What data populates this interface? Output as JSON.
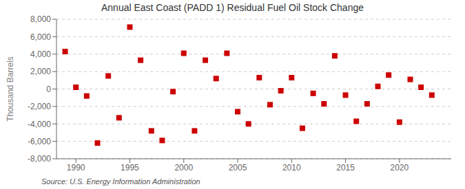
{
  "chart_data": {
    "type": "scatter",
    "title": "Annual East Coast (PADD 1) Residual Fuel Oil Stock Change",
    "ylabel": "Thousand Barrels",
    "annotations": [
      "Source: U.S. Energy Information Administration"
    ],
    "x": [
      1989,
      1990,
      1991,
      1992,
      1993,
      1994,
      1995,
      1996,
      1997,
      1998,
      1999,
      2000,
      2001,
      2002,
      2003,
      2004,
      2005,
      2006,
      2007,
      2008,
      2009,
      2010,
      2011,
      2012,
      2013,
      2014,
      2015,
      2016,
      2017,
      2018,
      2019,
      2020,
      2021,
      2022,
      2023
    ],
    "values": [
      4300,
      200,
      -800,
      -6200,
      1500,
      -3300,
      7100,
      3300,
      -4800,
      -5900,
      -300,
      4100,
      -4800,
      3300,
      1200,
      4100,
      -2600,
      -4000,
      1300,
      -1800,
      -200,
      1300,
      -4500,
      -500,
      -1700,
      3800,
      -700,
      -3700,
      -1700,
      300,
      1600,
      -3800,
      1100,
      200,
      -700
    ],
    "color": "#cc0000",
    "marker": "square",
    "xlim": [
      1988.2,
      2024.8
    ],
    "xticks": [
      1990,
      1995,
      2000,
      2005,
      2010,
      2015,
      2020
    ],
    "ylim": [
      -8000,
      8000
    ],
    "yticks": [
      {
        "value": -8000,
        "label": "-8,000"
      },
      {
        "value": -6000,
        "label": "-6,000"
      },
      {
        "value": -4000,
        "label": "-4,000"
      },
      {
        "value": -2000,
        "label": "-2,000"
      },
      0,
      {
        "value": 2000,
        "label": "2,000"
      },
      {
        "value": 4000,
        "label": "4,000"
      },
      {
        "value": 6000,
        "label": "6,000"
      },
      {
        "value": 8000,
        "label": "8,000"
      }
    ],
    "grid": true
  }
}
